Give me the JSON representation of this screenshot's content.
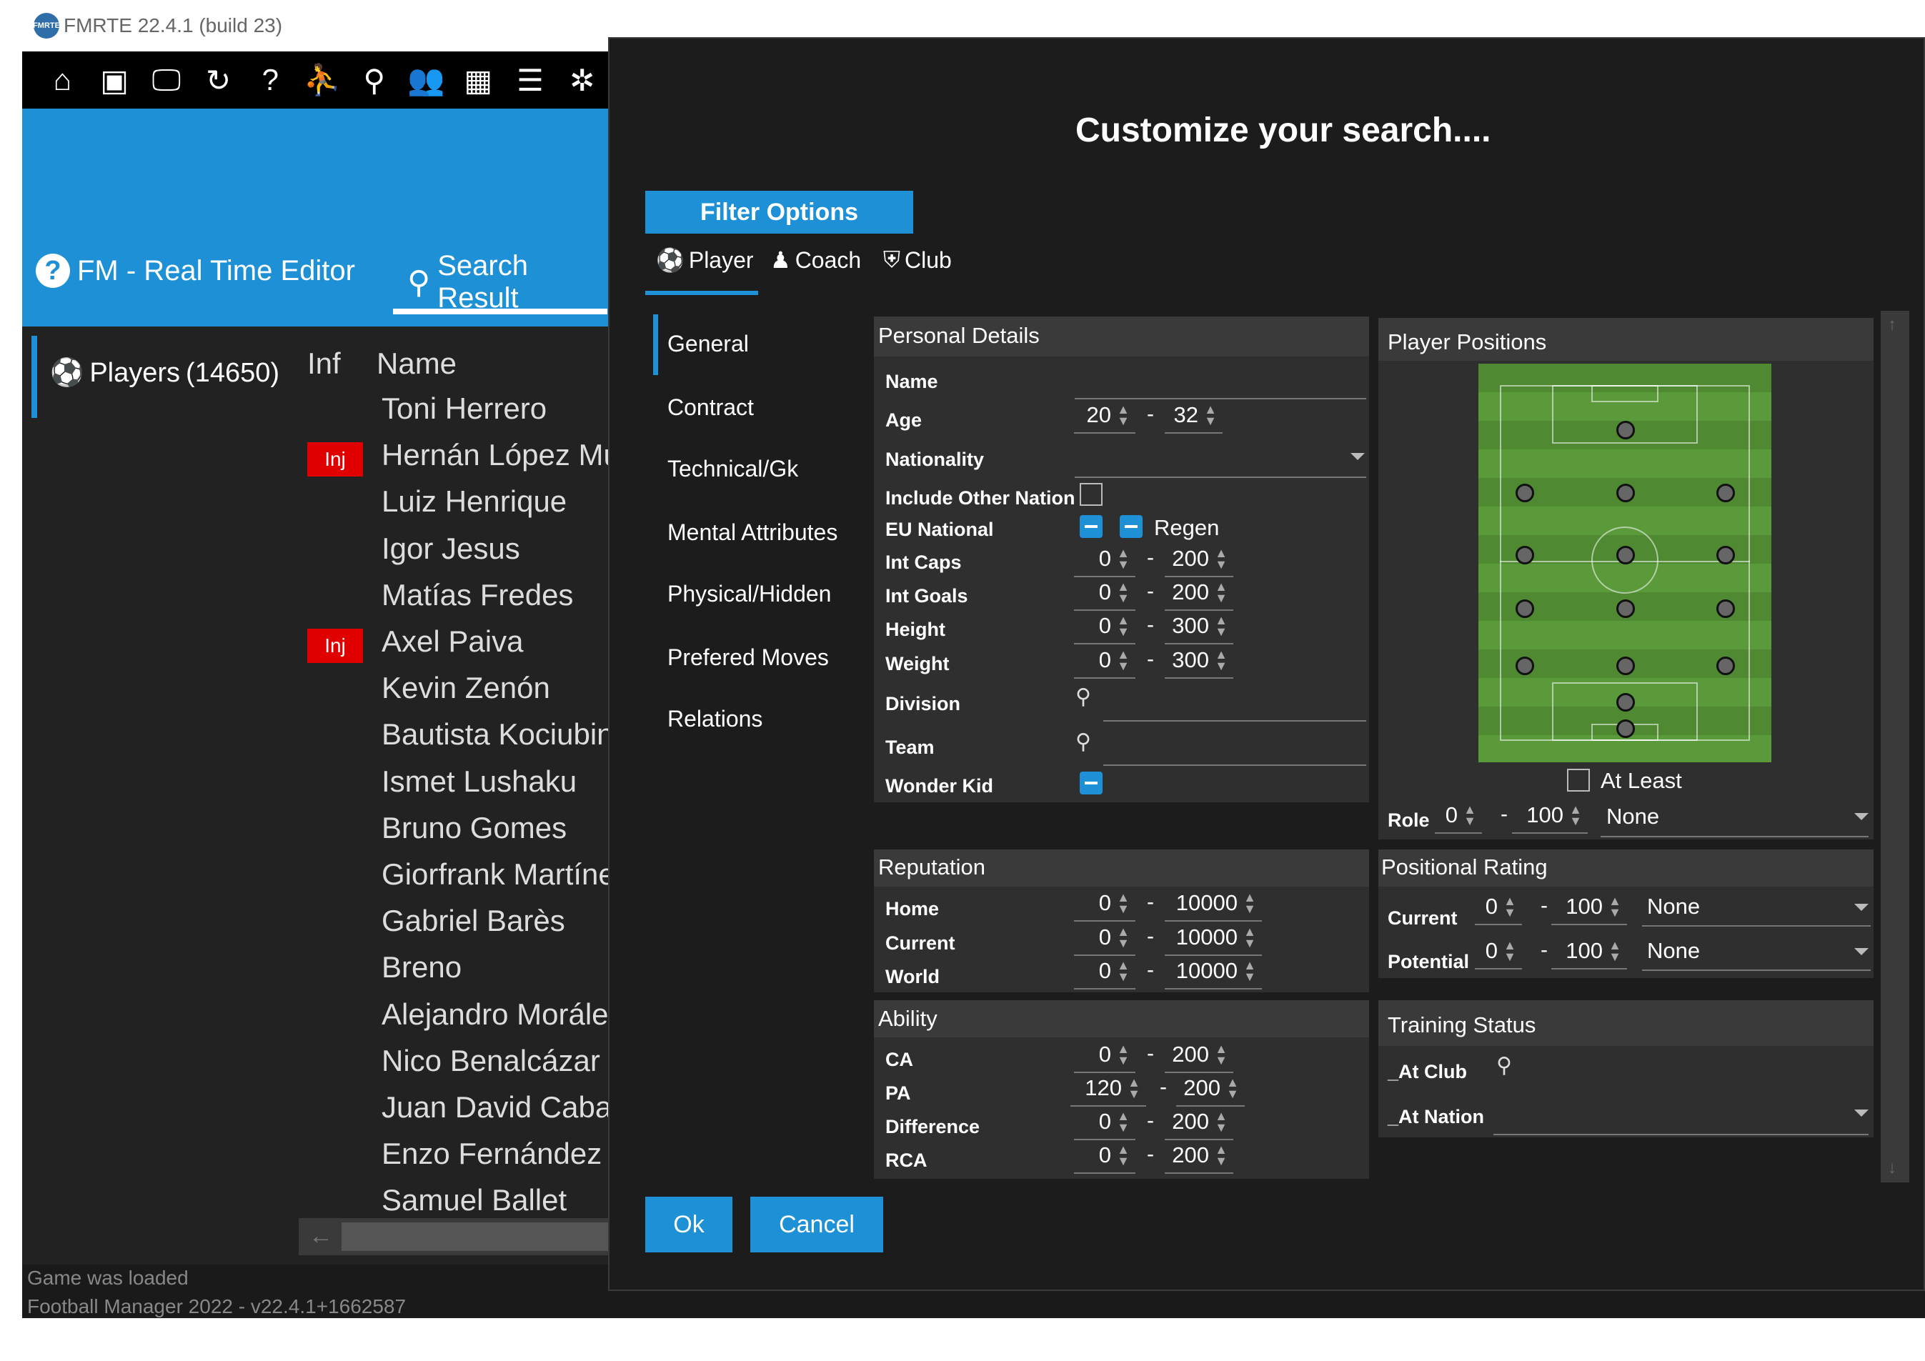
{
  "app": {
    "title": "FMRTE 22.4.1 (build 23)",
    "logo_text": "FMRTE"
  },
  "toolbar": {
    "icons": [
      "home-icon",
      "save-icon",
      "monitor-icon",
      "refresh-icon",
      "help-icon",
      "transfer-icon",
      "binoculars-icon",
      "people-icon",
      "calendar-icon",
      "notes-icon",
      "settings-icon"
    ],
    "glyphs": [
      "⌂",
      "▣",
      "🖵",
      "↻",
      "?",
      "⛹",
      "⚲",
      "👥",
      "▦",
      "☰",
      "✲"
    ]
  },
  "header_tabs": {
    "help_tab": "FM - Real Time Editor",
    "search_tab": "Search Result"
  },
  "sidebar": {
    "players_label": "Players",
    "players_count": "(14650)"
  },
  "table": {
    "col_inf": "Inf",
    "col_name": "Name",
    "rows": [
      {
        "name": "Toni Herrero",
        "inf": ""
      },
      {
        "name": "Hernán López Mu",
        "inf": "Inj"
      },
      {
        "name": "Luiz Henrique",
        "inf": ""
      },
      {
        "name": "Igor Jesus",
        "inf": ""
      },
      {
        "name": "Matías Fredes",
        "inf": ""
      },
      {
        "name": "Axel Paiva",
        "inf": "Inj"
      },
      {
        "name": "Kevin Zenón",
        "inf": ""
      },
      {
        "name": "Bautista Kociubin",
        "inf": ""
      },
      {
        "name": "Ismet Lushaku",
        "inf": ""
      },
      {
        "name": "Bruno Gomes",
        "inf": ""
      },
      {
        "name": "Giorfrank Martíne",
        "inf": ""
      },
      {
        "name": "Gabriel Barès",
        "inf": ""
      },
      {
        "name": "Breno",
        "inf": ""
      },
      {
        "name": "Alejandro Moráles",
        "inf": ""
      },
      {
        "name": "Nico Benalcázar",
        "inf": ""
      },
      {
        "name": "Juan David Cabal",
        "inf": ""
      },
      {
        "name": "Enzo Fernández",
        "inf": ""
      },
      {
        "name": "Samuel Ballet",
        "inf": ""
      }
    ]
  },
  "status": {
    "line1": "Game was loaded",
    "line2": "Football Manager 2022 - v22.4.1+1662587"
  },
  "dialog": {
    "title": "Customize your search....",
    "filter_options": "Filter Options",
    "type_tabs": {
      "player": "Player",
      "coach": "Coach",
      "club": "Club"
    },
    "nav": [
      "General",
      "Contract",
      "Technical/Gk",
      "Mental Attributes",
      "Physical/Hidden",
      "Prefered Moves",
      "Relations"
    ],
    "personal": {
      "header": "Personal Details",
      "name_label": "Name",
      "age_label": "Age",
      "age_min": "20",
      "age_max": "32",
      "nationality_label": "Nationality",
      "include_other_label": "Include Other Nationa",
      "eu_label": "EU National",
      "regen_label": "Regen",
      "intcaps_label": "Int Caps",
      "intcaps_min": "0",
      "intcaps_max": "200",
      "intgoals_label": "Int Goals",
      "intgoals_min": "0",
      "intgoals_max": "200",
      "height_label": "Height",
      "height_min": "0",
      "height_max": "300",
      "weight_label": "Weight",
      "weight_min": "0",
      "weight_max": "300",
      "division_label": "Division",
      "team_label": "Team",
      "wonderkid_label": "Wonder Kid"
    },
    "reputation": {
      "header": "Reputation",
      "home_label": "Home",
      "home_min": "0",
      "home_max": "10000",
      "current_label": "Current",
      "current_min": "0",
      "current_max": "10000",
      "world_label": "World",
      "world_min": "0",
      "world_max": "10000"
    },
    "ability": {
      "header": "Ability",
      "ca_label": "CA",
      "ca_min": "0",
      "ca_max": "200",
      "pa_label": "PA",
      "pa_min": "120",
      "pa_max": "200",
      "diff_label": "Difference",
      "diff_min": "0",
      "diff_max": "200",
      "rca_label": "RCA",
      "rca_min": "0",
      "rca_max": "200"
    },
    "positions": {
      "header": "Player Positions",
      "at_least_label": "At Least",
      "role_label": "Role",
      "role_min": "0",
      "role_max": "100",
      "role_value": "None"
    },
    "positional_rating": {
      "header": "Positional Rating",
      "current_label": "Current",
      "current_min": "0",
      "current_max": "100",
      "current_value": "None",
      "potential_label": "Potential",
      "potential_min": "0",
      "potential_max": "100",
      "potential_value": "None"
    },
    "training": {
      "header": "Training Status",
      "at_club_label": "_At Club",
      "at_nation_label": "_At Nation"
    },
    "ok": "Ok",
    "cancel": "Cancel"
  },
  "colors": {
    "accent": "#1e90d6",
    "injury": "#e00000",
    "panel": "#2f2f2f",
    "background": "#1c1c1c"
  }
}
